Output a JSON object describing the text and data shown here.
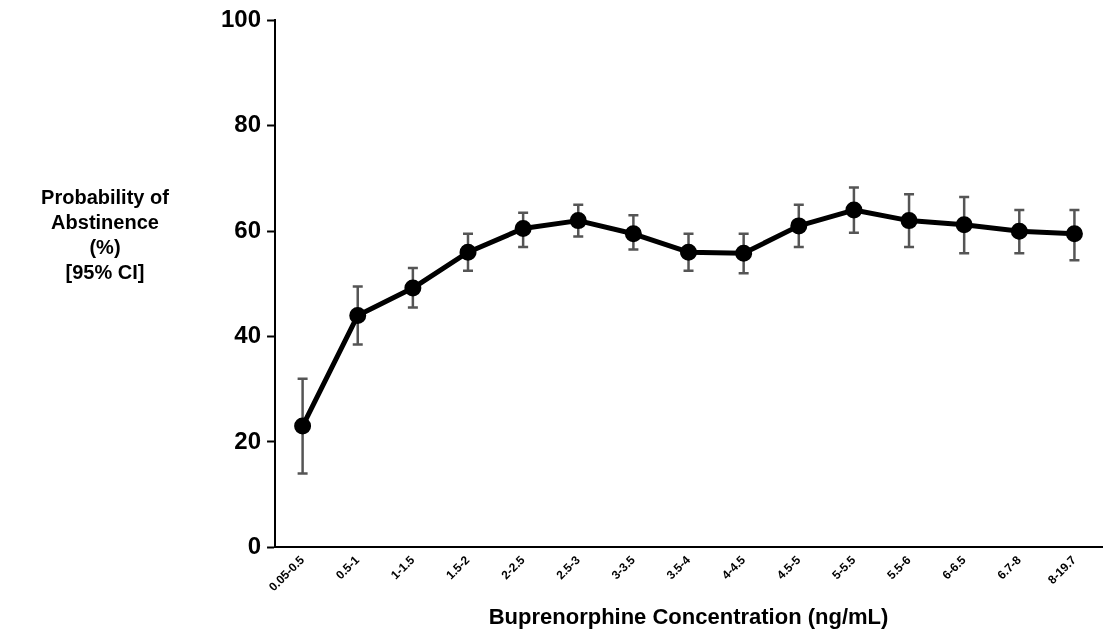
{
  "chart_data": {
    "type": "line",
    "xlabel": "Buprenorphine Concentration (ng/mL)",
    "ylabel": "Probability of\nAbstinence\n(%)\n[95% CI]",
    "categories": [
      "0.05-0.5",
      "0.5-1",
      "1-1.5",
      "1.5-2",
      "2-2.5",
      "2.5-3",
      "3-3.5",
      "3.5-4",
      "4-4.5",
      "4.5-5",
      "5-5.5",
      "5.5-6",
      "6-6.5",
      "6.7-8",
      "8-19.7"
    ],
    "series": [
      {
        "color": "#000000",
        "values": [
          23,
          44,
          49.2,
          56,
          60.5,
          62,
          59.5,
          56,
          55.8,
          61,
          64,
          62,
          61.2,
          60,
          59.5
        ],
        "errors": [
          [
            14,
            32
          ],
          [
            38.5,
            49.5
          ],
          [
            45.5,
            53
          ],
          [
            52.5,
            59.5
          ],
          [
            57,
            63.5
          ],
          [
            59,
            65
          ],
          [
            56.5,
            63
          ],
          [
            52.5,
            59.5
          ],
          [
            52,
            59.5
          ],
          [
            57,
            65
          ],
          [
            59.7,
            68.3
          ],
          [
            57,
            67
          ],
          [
            55.8,
            66.5
          ],
          [
            55.8,
            64
          ],
          [
            54.5,
            64
          ]
        ]
      }
    ],
    "ylim": [
      0,
      100
    ],
    "yticks": [
      0,
      20,
      40,
      60,
      80,
      100
    ],
    "grid": false,
    "legend": false,
    "marker": "circle",
    "line_style": "solid"
  }
}
